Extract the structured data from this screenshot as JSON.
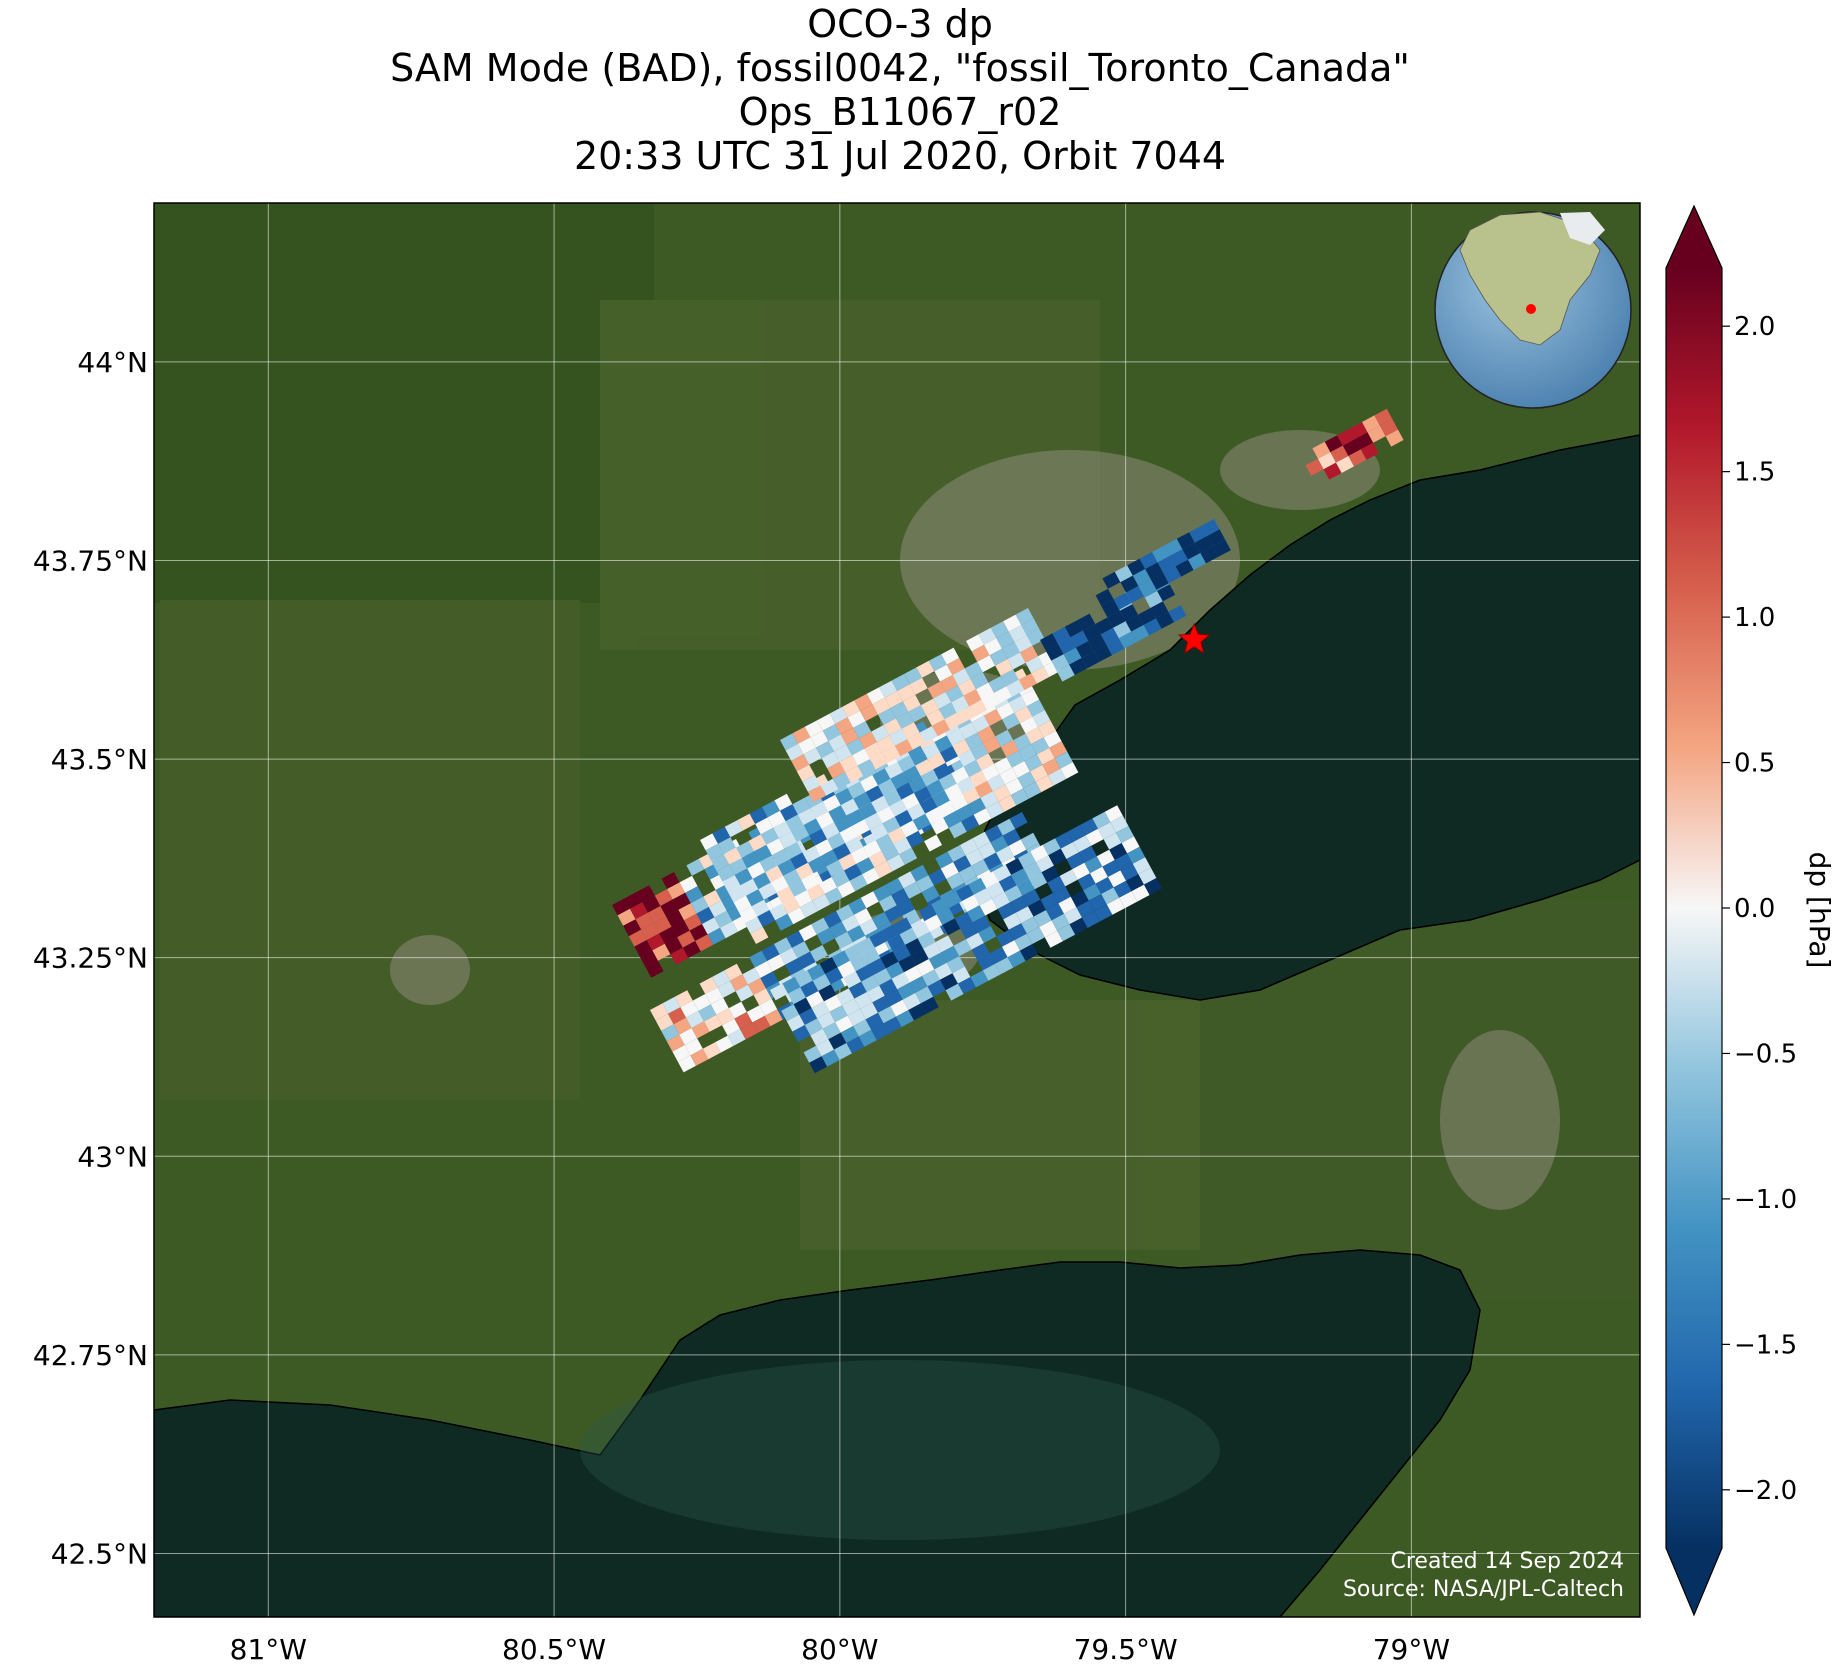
{
  "title": {
    "line1": "OCO-3 dp",
    "line2": "SAM Mode (BAD), fossil0042, \"fossil_Toronto_Canada\"",
    "line3": "Ops_B11067_r02",
    "line4": "20:33 UTC 31 Jul 2020, Orbit 7044"
  },
  "map": {
    "lon_range": [
      -81.2,
      -78.6
    ],
    "lat_range": [
      42.42,
      44.2
    ],
    "lon_ticks": [
      -81,
      -80.5,
      -80,
      -79.5,
      -79
    ],
    "lon_tick_labels": [
      "81°W",
      "80.5°W",
      "80°W",
      "79.5°W",
      "79°W"
    ],
    "lat_ticks": [
      44,
      43.75,
      43.5,
      43.25,
      43,
      42.75,
      42.5
    ],
    "lat_tick_labels": [
      "44°N",
      "43.75°N",
      "43.5°N",
      "43.25°N",
      "43°N",
      "42.75°N",
      "42.5°N"
    ],
    "target": {
      "lon": -79.38,
      "lat": 43.65
    },
    "colors": {
      "land": "#3d5a24",
      "lake": "#0f2a22",
      "urban": "#8c8a78",
      "grid": "#ffffff",
      "target": "#ff0000"
    }
  },
  "colorbar": {
    "label": "dp [hPa]",
    "min": -2.2,
    "max": 2.2,
    "ticks": [
      2.0,
      1.5,
      1.0,
      0.5,
      0.0,
      -0.5,
      -1.0,
      -1.5,
      -2.0
    ],
    "tick_labels": [
      "2.0",
      "1.5",
      "1.0",
      "0.5",
      "0.0",
      "−0.5",
      "−1.0",
      "−1.5",
      "−2.0"
    ],
    "colormap": "RdBu_r"
  },
  "credits": {
    "created": "Created 14 Sep 2024",
    "source": "Source: NASA/JPL-Caltech"
  }
}
